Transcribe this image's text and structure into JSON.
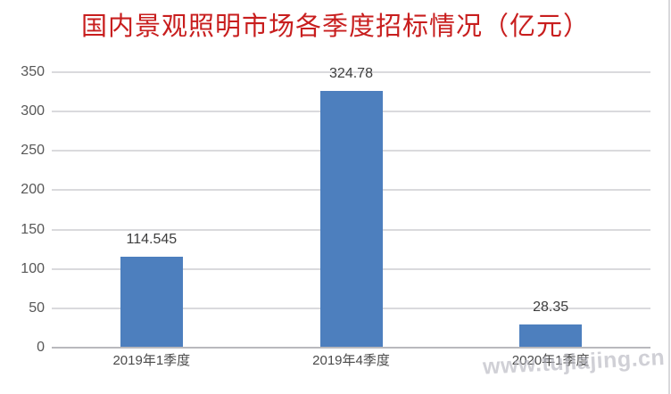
{
  "title": "国内景观照明市场各季度招标情况（亿元）",
  "watermark": "www.tujiajing.cn",
  "colors": {
    "title": "#c81e1e",
    "bar": "#4d7fbe",
    "gridline": "#dadadd",
    "axis_line": "#b9b9bd",
    "tick_label": "#575757",
    "data_label": "#3d3d3d",
    "watermark": "#b4b4bd"
  },
  "chart_data": {
    "type": "bar",
    "title": "国内景观照明市场各季度招标情况（亿元）",
    "categories": [
      "2019年1季度",
      "2019年4季度",
      "2020年1季度"
    ],
    "values": [
      114.545,
      324.78,
      28.35
    ],
    "data_labels": [
      "114.545",
      "324.78",
      "28.35"
    ],
    "xlabel": "",
    "ylabel": "",
    "ylim": [
      0,
      350
    ],
    "yticks": [
      0,
      50,
      100,
      150,
      200,
      250,
      300,
      350
    ],
    "ytick_labels": [
      "0",
      "50",
      "100",
      "150",
      "200",
      "250",
      "300",
      "350"
    ],
    "grid": true,
    "legend": false,
    "bar_color": "#4d7fbe"
  }
}
